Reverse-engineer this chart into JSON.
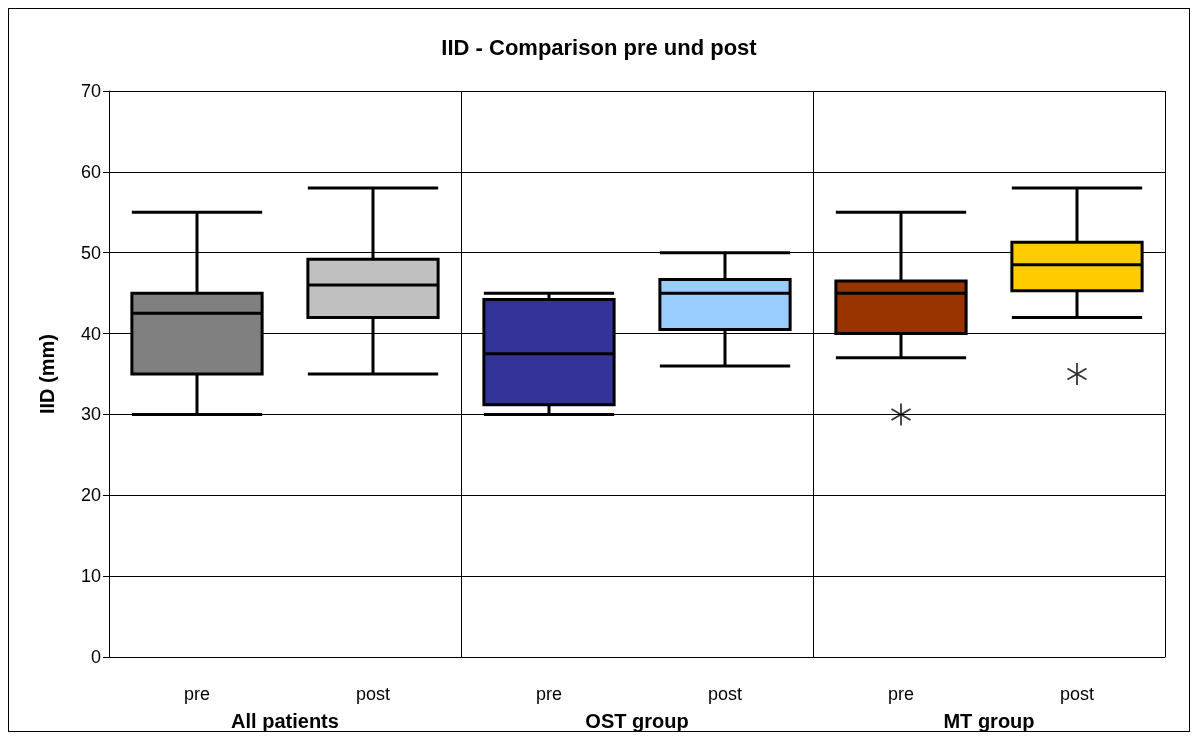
{
  "chart_data": {
    "type": "box",
    "title": "IID - Comparison pre und post",
    "ylabel": "IID (mm)",
    "categories": [
      "pre",
      "post",
      "pre",
      "post",
      "pre",
      "post"
    ],
    "annotations": [
      "All patients",
      "OST group",
      "MT group"
    ],
    "colors": [
      "#808080",
      "#c0c0c0",
      "#333399",
      "#99ccff",
      "#993300",
      "#ffcc00"
    ],
    "boxes": [
      {
        "low": 30,
        "q1": 35,
        "median": 42.5,
        "q3": 45,
        "high": 55
      },
      {
        "low": 35,
        "q1": 42,
        "median": 46,
        "q3": 49.2,
        "high": 58
      },
      {
        "low": 30,
        "q1": 31.2,
        "median": 37.5,
        "q3": 44.2,
        "high": 45
      },
      {
        "low": 36,
        "q1": 40.5,
        "median": 45,
        "q3": 46.7,
        "high": 50
      },
      {
        "low": 37,
        "q1": 40,
        "median": 45,
        "q3": 46.5,
        "high": 55,
        "outliers": [
          30
        ]
      },
      {
        "low": 42,
        "q1": 45.3,
        "median": 48.5,
        "q3": 51.3,
        "high": 58,
        "outliers": [
          35
        ]
      }
    ],
    "ylim": [
      0,
      70
    ],
    "yticks": [
      0,
      10,
      20,
      30,
      40,
      50,
      60,
      70
    ],
    "grid": "y"
  }
}
